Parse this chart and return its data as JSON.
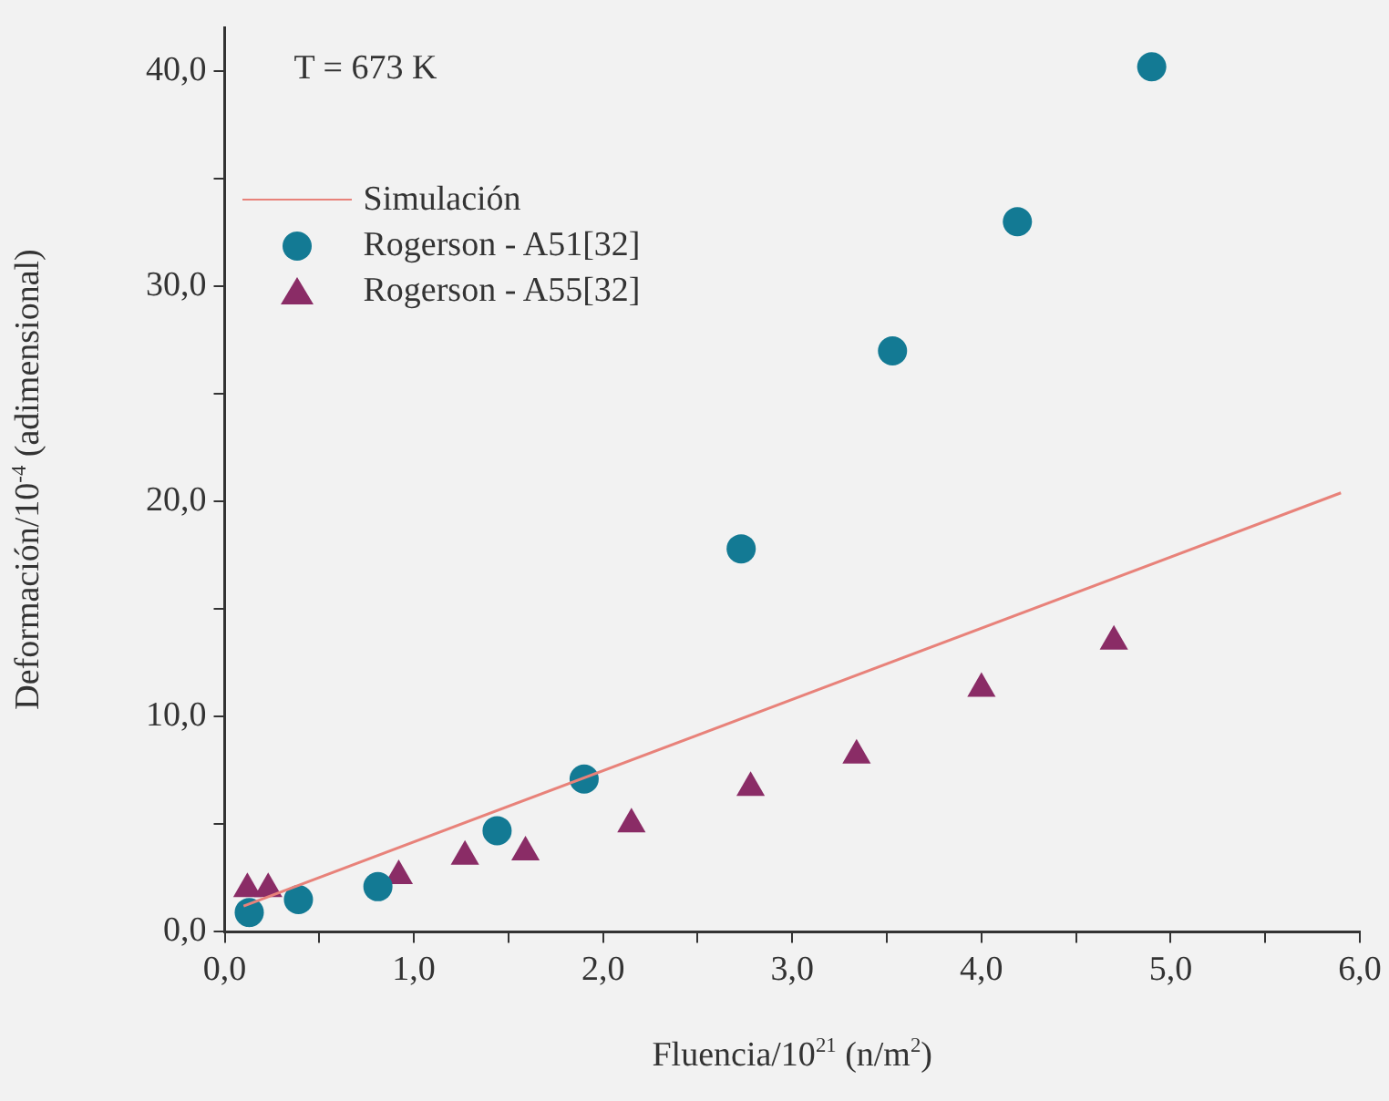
{
  "chart_data": {
    "type": "scatter",
    "xlabel": "Fluencia/10$^{21}$ (n/m$^{2}$)",
    "ylabel": "Deformación/10$^{-4}$ (adimensional)",
    "annotations": [
      "T = 673 K"
    ],
    "xlim": [
      0,
      6
    ],
    "ylim": [
      0,
      42
    ],
    "xticks": [
      {
        "value": 0,
        "label": "0,0"
      },
      {
        "value": 0.5,
        "label": null
      },
      {
        "value": 1,
        "label": "1,0"
      },
      {
        "value": 1.5,
        "label": null
      },
      {
        "value": 2,
        "label": "2,0"
      },
      {
        "value": 2.5,
        "label": null
      },
      {
        "value": 3,
        "label": "3,0"
      },
      {
        "value": 3.5,
        "label": null
      },
      {
        "value": 4,
        "label": "4,0"
      },
      {
        "value": 4.5,
        "label": null
      },
      {
        "value": 5,
        "label": "5,0"
      },
      {
        "value": 5.5,
        "label": null
      },
      {
        "value": 6,
        "label": "6,0"
      }
    ],
    "yticks": [
      {
        "value": 0,
        "label": "0,0"
      },
      {
        "value": 5,
        "label": null
      },
      {
        "value": 10,
        "label": "10,0"
      },
      {
        "value": 15,
        "label": null
      },
      {
        "value": 20,
        "label": "20,0"
      },
      {
        "value": 25,
        "label": null
      },
      {
        "value": 30,
        "label": "30,0"
      },
      {
        "value": 35,
        "label": null
      },
      {
        "value": 40,
        "label": "40,0"
      }
    ],
    "grid": false,
    "legend": "top left",
    "series": [
      {
        "name": "Simulación",
        "type": "line",
        "color": "#e8827a",
        "marker": "none",
        "x": [
          0.1,
          5.9
        ],
        "values": [
          1.2,
          20.4
        ]
      },
      {
        "name": "Rogerson - A51[32]",
        "color": "#137a94",
        "marker": "circle",
        "x": [
          0.13,
          0.39,
          0.81,
          1.44,
          1.9,
          2.73,
          3.53,
          4.19,
          4.9
        ],
        "values": [
          0.9,
          1.5,
          2.1,
          4.7,
          7.1,
          17.8,
          27.0,
          33.0,
          40.2
        ]
      },
      {
        "name": "Rogerson - A55[32]",
        "color": "#8a2c66",
        "marker": "triangle",
        "x": [
          0.12,
          0.23,
          0.92,
          1.27,
          1.59,
          2.15,
          2.78,
          3.34,
          4.0,
          4.7
        ],
        "values": [
          2.0,
          2.0,
          2.6,
          3.5,
          3.7,
          5.0,
          6.7,
          8.2,
          11.3,
          13.5
        ]
      }
    ]
  }
}
